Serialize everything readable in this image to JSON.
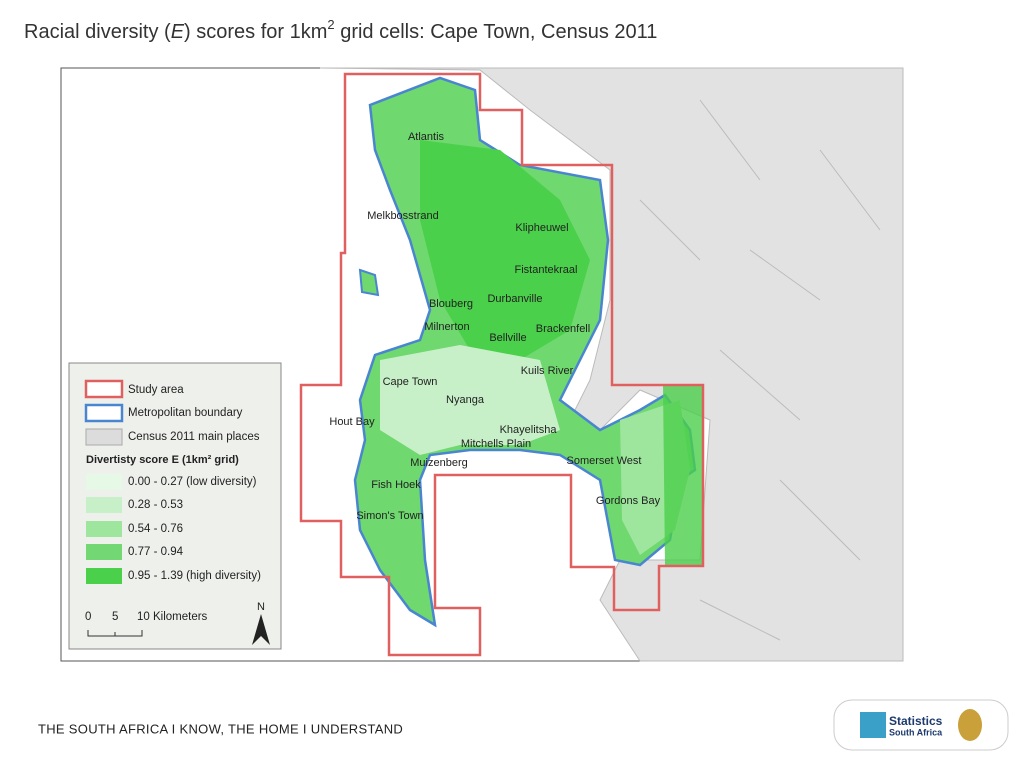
{
  "header": {
    "title": {
      "before": "Racial diversity (",
      "italic": "E",
      "middle": ") scores for 1km",
      "superscript": "2",
      "after": " grid cells: Cape Town, Census 2011"
    }
  },
  "map": {
    "places": [
      "Atlantis",
      "Melkbosstrand",
      "Klipheuwel",
      "Fistantekraal",
      "Durbanville",
      "Blouberg",
      "Milnerton",
      "Brackenfell",
      "Bellville",
      "Kuils River",
      "Cape Town",
      "Nyanga",
      "Hout Bay",
      "Khayelitsha",
      "Mitchells Plain",
      "Muizenberg",
      "Somerset West",
      "Fish Hoek",
      "Gordons Bay",
      "Simon's Town"
    ]
  },
  "legend": {
    "study_area": "Study area",
    "metro_boundary": "Metropolitan boundary",
    "main_places": "Census 2011 main places",
    "score_title": "Divertisty score E (1km² grid)",
    "classes": [
      "0.00 - 0.27 (low diversity)",
      "0.28 - 0.53",
      "0.54 - 0.76",
      "0.77 - 0.94",
      "0.95 - 1.39 (high diversity)"
    ],
    "scale": [
      "0",
      "5",
      "10 Kilometers"
    ],
    "north": "N"
  },
  "footer": {
    "slogan": "THE SOUTH AFRICA I KNOW, THE HOME I UNDERSTAND",
    "logo_line1": "Statistics",
    "logo_line2": "South Africa"
  }
}
